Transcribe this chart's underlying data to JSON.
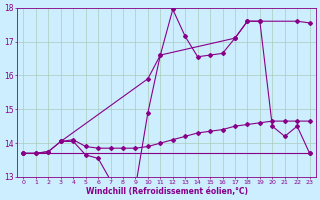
{
  "xlabel": "Windchill (Refroidissement éolien,°C)",
  "background_color": "#cceeff",
  "grid_color": "#aaccbb",
  "line_color": "#880088",
  "x_min": -0.5,
  "x_max": 23.5,
  "y_min": 13,
  "y_max": 18,
  "series1_x": [
    0,
    1,
    2,
    3,
    4,
    5,
    6,
    7,
    8,
    9,
    10,
    11,
    12,
    13,
    14,
    15,
    16,
    17,
    18,
    19,
    20,
    21,
    22,
    23
  ],
  "series1_y": [
    13.7,
    13.7,
    13.75,
    14.05,
    14.05,
    13.65,
    13.55,
    12.9,
    12.8,
    12.7,
    14.9,
    16.6,
    17.95,
    17.15,
    16.55,
    16.6,
    16.65,
    17.1,
    17.6,
    17.6,
    14.5,
    14.2,
    14.5,
    13.7
  ],
  "series2_x": [
    0,
    1,
    2,
    3,
    4,
    5,
    6,
    7,
    8,
    9,
    10,
    11,
    12,
    13,
    14,
    15,
    16,
    17,
    18,
    19,
    20,
    21,
    22,
    23
  ],
  "series2_y": [
    13.7,
    13.7,
    13.75,
    14.05,
    14.1,
    13.9,
    13.85,
    13.85,
    13.85,
    13.85,
    13.9,
    14.0,
    14.1,
    14.2,
    14.3,
    14.35,
    14.4,
    14.5,
    14.55,
    14.6,
    14.65,
    14.65,
    14.65,
    14.65
  ],
  "series3_x": [
    0,
    23
  ],
  "series3_y": [
    13.7,
    13.7
  ],
  "series4_x": [
    3,
    10,
    11,
    17,
    18,
    19,
    22,
    23
  ],
  "series4_y": [
    14.05,
    15.9,
    16.6,
    17.1,
    17.6,
    17.6,
    17.6,
    17.55
  ]
}
